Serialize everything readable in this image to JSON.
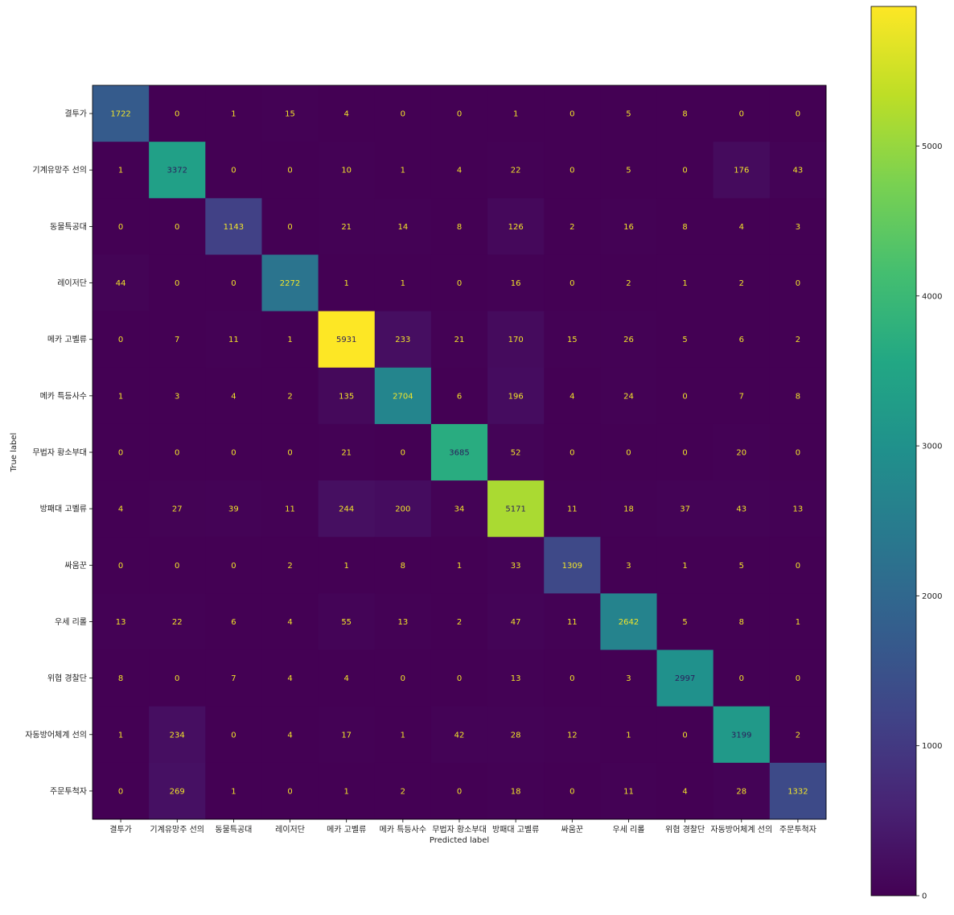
{
  "chart_data": {
    "type": "heatmap",
    "title": "",
    "xlabel": "Predicted label",
    "ylabel": "True label",
    "labels": [
      "결투가",
      "기계유망주 선의",
      "동물특공대",
      "레이저단",
      "메카 고벨류",
      "메카 특등사수",
      "무법자 황소부대",
      "방패대 고벨류",
      "싸움꾼",
      "우세 리롤",
      "위협 경찰단",
      "자동방어체계 선의",
      "주문투척자"
    ],
    "matrix": [
      [
        1722,
        0,
        1,
        15,
        4,
        0,
        0,
        1,
        0,
        5,
        8,
        0,
        0
      ],
      [
        1,
        3372,
        0,
        0,
        10,
        1,
        4,
        22,
        0,
        5,
        0,
        176,
        43
      ],
      [
        0,
        0,
        1143,
        0,
        21,
        14,
        8,
        126,
        2,
        16,
        8,
        4,
        3
      ],
      [
        44,
        0,
        0,
        2272,
        1,
        1,
        0,
        16,
        0,
        2,
        1,
        2,
        0
      ],
      [
        0,
        7,
        11,
        1,
        5931,
        233,
        21,
        170,
        15,
        26,
        5,
        6,
        2
      ],
      [
        1,
        3,
        4,
        2,
        135,
        2704,
        6,
        196,
        4,
        24,
        0,
        7,
        8
      ],
      [
        0,
        0,
        0,
        0,
        21,
        0,
        3685,
        52,
        0,
        0,
        0,
        20,
        0
      ],
      [
        4,
        27,
        39,
        11,
        244,
        200,
        34,
        5171,
        11,
        18,
        37,
        43,
        13
      ],
      [
        0,
        0,
        0,
        2,
        1,
        8,
        1,
        33,
        1309,
        3,
        1,
        5,
        0
      ],
      [
        13,
        22,
        6,
        4,
        55,
        13,
        2,
        47,
        11,
        2642,
        5,
        8,
        1
      ],
      [
        8,
        0,
        7,
        4,
        4,
        0,
        0,
        13,
        0,
        3,
        2997,
        0,
        0
      ],
      [
        1,
        234,
        0,
        4,
        17,
        1,
        42,
        28,
        12,
        1,
        0,
        3199,
        2
      ],
      [
        0,
        269,
        1,
        0,
        1,
        2,
        0,
        18,
        0,
        11,
        4,
        28,
        1332
      ]
    ],
    "colormap": "viridis",
    "vmin": 0,
    "vmax": 5931,
    "colorbar_ticks": [
      0,
      1000,
      2000,
      3000,
      4000,
      5000
    ],
    "grid": false,
    "legend": "colorbar-right"
  },
  "colors": {
    "text_light": "#f2e52a",
    "text_dark": "#2b1d5c"
  }
}
